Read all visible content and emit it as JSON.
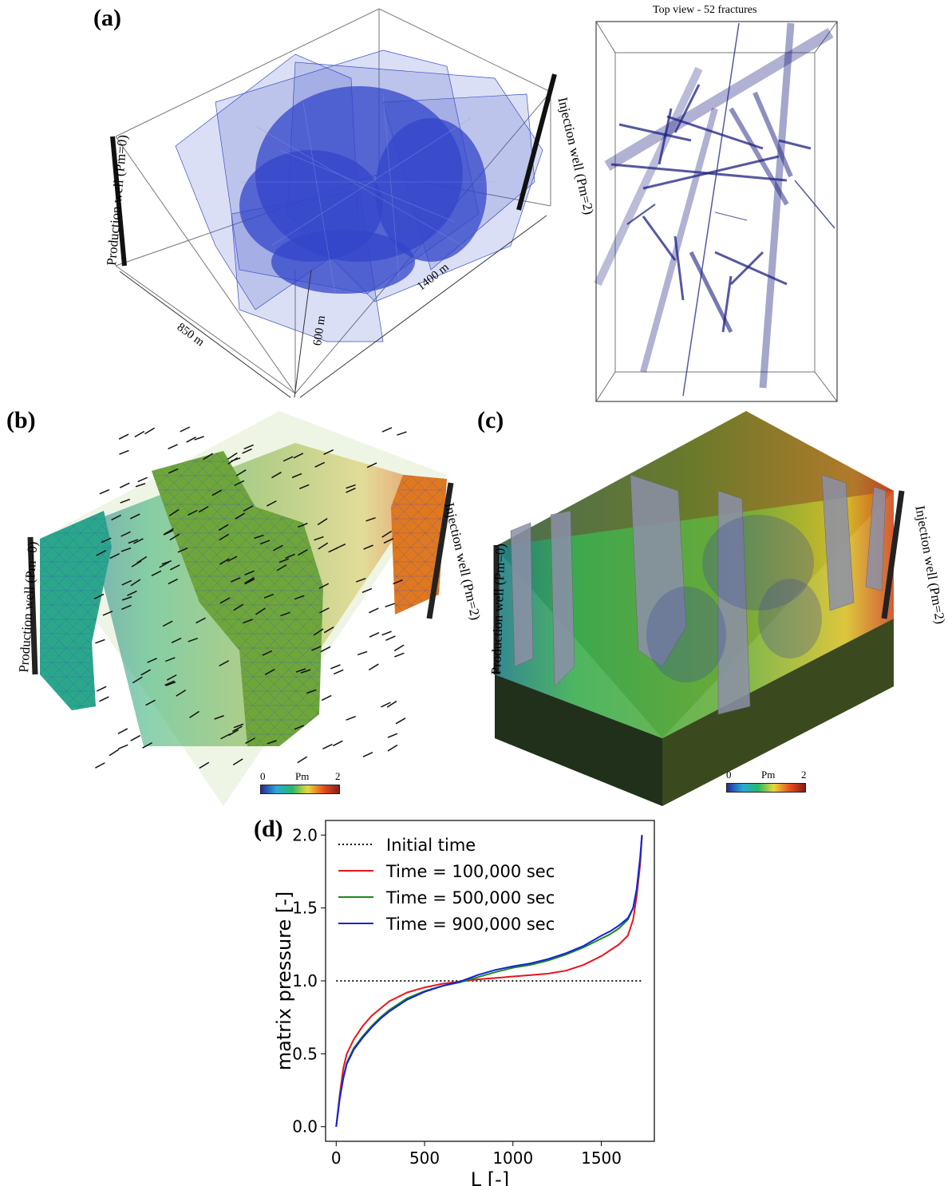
{
  "panels": {
    "a": {
      "label": "(a)",
      "production_well": "Production well (Pm=0)",
      "injection_well": "Injection well (Pm=2)",
      "dim_width": "850 m",
      "dim_length": "1400 m",
      "dim_height": "600 m",
      "topview_title": "Top view - 52 fractures"
    },
    "b": {
      "label": "(b)",
      "production_well": "Production well (Pm=0)",
      "injection_well": "Injection well (Pm=2)",
      "cbar_min": "0",
      "cbar_name": "Pm",
      "cbar_max": "2"
    },
    "c": {
      "label": "(c)",
      "production_well": "Production well (Pm=0)",
      "injection_well": "Injection well (Pm=2)",
      "cbar_min": "0",
      "cbar_name": "Pm",
      "cbar_max": "2"
    },
    "d": {
      "label": "(d)"
    }
  },
  "colors": {
    "mesh_blue": "#3a4fc7",
    "fracture_navy": "#1c2080",
    "initial": "#000000",
    "t100k": "#e8141c",
    "t500k": "#1a8a1a",
    "t900k": "#1420e0"
  },
  "chart_data": {
    "type": "line",
    "xlabel": "L [-]",
    "ylabel": "matrix pressure [-]",
    "xlim": [
      -60,
      1800
    ],
    "ylim": [
      -0.1,
      2.1
    ],
    "xticks": [
      0,
      500,
      1000,
      1500
    ],
    "yticks": [
      0.0,
      0.5,
      1.0,
      1.5,
      2.0
    ],
    "legend_position": "top-left",
    "series": [
      {
        "name": "Initial time",
        "style": "dotted",
        "x": [
          0,
          1730
        ],
        "y": [
          1.0,
          1.0
        ]
      },
      {
        "name": "Time = 100,000 sec",
        "style": "solid",
        "x": [
          0,
          20,
          40,
          60,
          100,
          150,
          200,
          250,
          300,
          350,
          400,
          500,
          600,
          700,
          800,
          900,
          1000,
          1100,
          1200,
          1300,
          1400,
          1500,
          1550,
          1600,
          1650,
          1680,
          1700,
          1720,
          1730
        ],
        "y": [
          0.0,
          0.22,
          0.4,
          0.5,
          0.6,
          0.69,
          0.76,
          0.81,
          0.86,
          0.89,
          0.92,
          0.955,
          0.98,
          0.995,
          1.01,
          1.02,
          1.03,
          1.04,
          1.05,
          1.07,
          1.11,
          1.17,
          1.21,
          1.25,
          1.31,
          1.42,
          1.58,
          1.8,
          2.0
        ]
      },
      {
        "name": "Time = 500,000 sec",
        "style": "solid",
        "x": [
          0,
          20,
          40,
          60,
          100,
          150,
          200,
          250,
          300,
          350,
          400,
          500,
          600,
          700,
          800,
          900,
          1000,
          1100,
          1200,
          1300,
          1400,
          1500,
          1550,
          1600,
          1650,
          1680,
          1700,
          1720,
          1730
        ],
        "y": [
          0.0,
          0.2,
          0.34,
          0.44,
          0.54,
          0.62,
          0.69,
          0.75,
          0.8,
          0.84,
          0.88,
          0.93,
          0.965,
          0.99,
          1.025,
          1.06,
          1.09,
          1.11,
          1.14,
          1.18,
          1.23,
          1.29,
          1.32,
          1.36,
          1.42,
          1.5,
          1.62,
          1.84,
          2.0
        ]
      },
      {
        "name": "Time = 900,000 sec",
        "style": "solid",
        "x": [
          0,
          20,
          40,
          60,
          100,
          150,
          200,
          250,
          300,
          350,
          400,
          500,
          600,
          700,
          800,
          900,
          1000,
          1100,
          1200,
          1300,
          1400,
          1500,
          1550,
          1600,
          1650,
          1680,
          1700,
          1720,
          1730
        ],
        "y": [
          0.0,
          0.19,
          0.33,
          0.43,
          0.53,
          0.61,
          0.68,
          0.74,
          0.79,
          0.83,
          0.87,
          0.925,
          0.965,
          0.995,
          1.04,
          1.075,
          1.1,
          1.12,
          1.15,
          1.19,
          1.24,
          1.31,
          1.34,
          1.38,
          1.43,
          1.5,
          1.63,
          1.85,
          2.0
        ]
      }
    ]
  }
}
